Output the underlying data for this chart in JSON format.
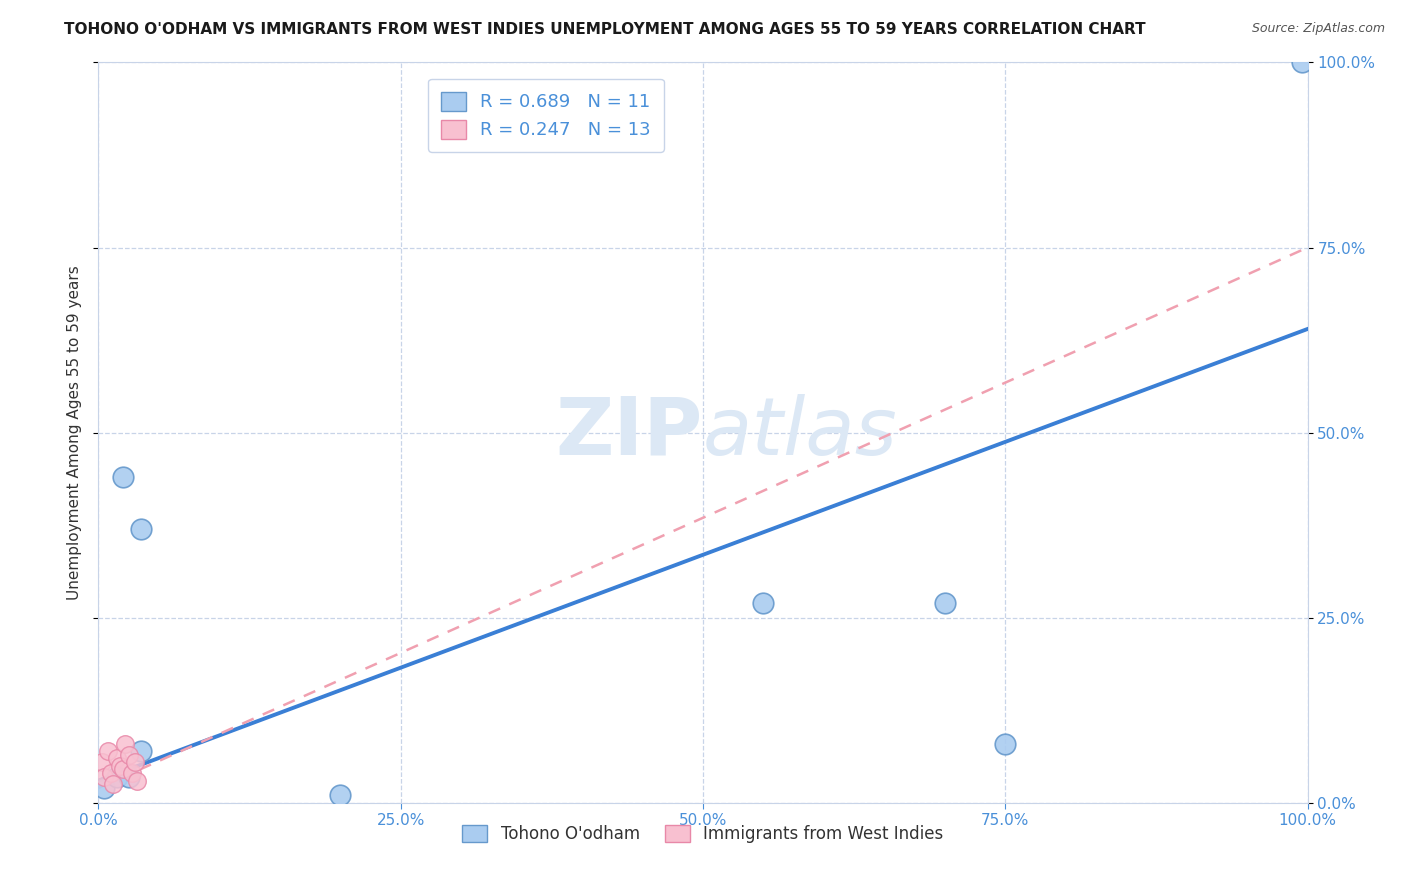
{
  "title": "TOHONO O'ODHAM VS IMMIGRANTS FROM WEST INDIES UNEMPLOYMENT AMONG AGES 55 TO 59 YEARS CORRELATION CHART",
  "source": "Source: ZipAtlas.com",
  "ylabel_label": "Unemployment Among Ages 55 to 59 years",
  "blue_label": "Tohono O'odham",
  "pink_label": "Immigrants from West Indies",
  "blue_R": 0.689,
  "blue_N": 11,
  "pink_R": 0.247,
  "pink_N": 13,
  "blue_x": [
    0.5,
    2.0,
    3.5,
    3.5,
    55.0,
    70.0,
    75.0,
    1.5,
    99.5,
    2.5,
    20.0
  ],
  "blue_y": [
    2.0,
    44.0,
    37.0,
    7.0,
    27.0,
    27.0,
    8.0,
    3.5,
    100.0,
    3.5,
    1.0
  ],
  "pink_x": [
    0.3,
    0.5,
    0.8,
    1.0,
    1.2,
    1.5,
    1.8,
    2.0,
    2.2,
    2.5,
    2.8,
    3.0,
    3.2
  ],
  "pink_y": [
    5.5,
    3.5,
    7.0,
    4.0,
    2.5,
    6.0,
    5.0,
    4.5,
    8.0,
    6.5,
    4.0,
    5.5,
    3.0
  ],
  "blue_line_x0": 0,
  "blue_line_y0": 3.0,
  "blue_line_x1": 100,
  "blue_line_y1": 64.0,
  "pink_line_x0": 0,
  "pink_line_y0": 2.0,
  "pink_line_x1": 100,
  "pink_line_y1": 75.0,
  "blue_line_color": "#3a7fd5",
  "pink_line_color": "#f0a0b0",
  "blue_dot_facecolor": "#aaccf0",
  "blue_dot_edgecolor": "#6699cc",
  "pink_dot_facecolor": "#f8c0d0",
  "pink_dot_edgecolor": "#e888a8",
  "background_color": "#ffffff",
  "grid_color": "#c8d4e8",
  "watermark_color": "#dce8f5",
  "xlim": [
    0,
    100
  ],
  "ylim": [
    0,
    100
  ],
  "xticks": [
    0,
    25,
    50,
    75,
    100
  ],
  "yticks": [
    0,
    25,
    50,
    75,
    100
  ],
  "xtick_labels": [
    "0.0%",
    "25.0%",
    "50.0%",
    "75.0%",
    "100.0%"
  ],
  "ytick_labels": [
    "0.0%",
    "25.0%",
    "50.0%",
    "75.0%",
    "100.0%"
  ],
  "tick_color": "#4a90d9",
  "title_fontsize": 11,
  "source_fontsize": 9,
  "legend_fontsize": 13,
  "ylabel_fontsize": 11
}
